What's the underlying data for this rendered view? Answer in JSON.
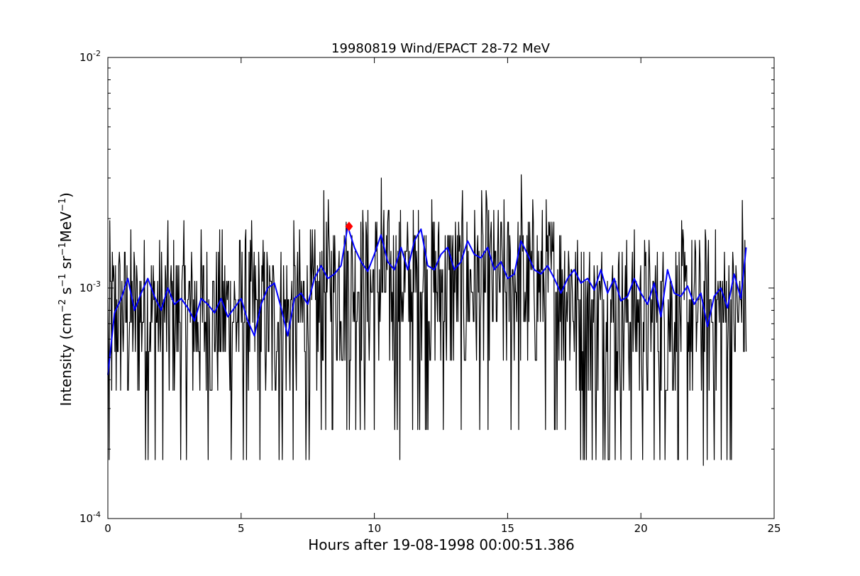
{
  "chart_data": {
    "type": "line",
    "title": "19980819 Wind/EPACT 28-72 MeV",
    "xlabel": "Hours after 19-08-1998 00:00:51.386",
    "ylabel": {
      "base": "Intensity (",
      "parts": [
        {
          "text": "cm",
          "sup": "−2"
        },
        {
          "text": " s",
          "sup": "−1"
        },
        {
          "text": " sr",
          "sup": "−1"
        },
        {
          "text": "MeV",
          "sup": "−1"
        }
      ],
      "close": ")"
    },
    "xlim": [
      0,
      25
    ],
    "ylim": [
      0.0001,
      0.01
    ],
    "yscale": "log",
    "x_ticks": [
      "0",
      "5",
      "10",
      "15",
      "20",
      "25"
    ],
    "y_ticks": [
      {
        "base": "10",
        "exp": "-4"
      },
      {
        "base": "10",
        "exp": "-3"
      },
      {
        "base": "10",
        "exp": "-2"
      }
    ],
    "grid": false,
    "series": [
      {
        "role": "raw",
        "color": "#000000",
        "x_range": [
          0.0,
          23.95
        ],
        "levels": [
          0.00018,
          0.00036,
          0.00053,
          0.00071,
          0.00089,
          0.00107,
          0.00125,
          0.00143,
          0.00161,
          0.00179,
          0.00196,
          0.00214,
          0.0023,
          0.0026,
          0.003
        ],
        "note_points": [
          {
            "x": 0.05,
            "y": 0.00018
          },
          {
            "x": 10.25,
            "y": 0.003
          },
          {
            "x": 10.95,
            "y": 0.00018
          },
          {
            "x": 15.5,
            "y": 0.0031
          },
          {
            "x": 22.35,
            "y": 0.00017
          },
          {
            "x": 23.8,
            "y": 0.0024
          }
        ]
      },
      {
        "role": "smoothed",
        "color": "#0000ff",
        "x": [
          0.0,
          0.25,
          0.5,
          0.75,
          1.0,
          1.25,
          1.5,
          1.75,
          2.0,
          2.25,
          2.5,
          2.75,
          3.0,
          3.25,
          3.5,
          3.75,
          4.0,
          4.25,
          4.5,
          4.75,
          5.0,
          5.25,
          5.5,
          5.75,
          6.0,
          6.25,
          6.5,
          6.75,
          7.0,
          7.25,
          7.5,
          7.75,
          8.0,
          8.25,
          8.5,
          8.75,
          9.0,
          9.25,
          9.5,
          9.75,
          10.0,
          10.25,
          10.5,
          10.75,
          11.0,
          11.25,
          11.5,
          11.75,
          12.0,
          12.25,
          12.5,
          12.75,
          13.0,
          13.25,
          13.5,
          13.75,
          14.0,
          14.25,
          14.5,
          14.75,
          15.0,
          15.25,
          15.5,
          15.75,
          16.0,
          16.25,
          16.5,
          16.75,
          17.0,
          17.25,
          17.5,
          17.75,
          18.0,
          18.25,
          18.5,
          18.75,
          19.0,
          19.25,
          19.5,
          19.75,
          20.0,
          20.25,
          20.5,
          20.75,
          21.0,
          21.25,
          21.5,
          21.75,
          22.0,
          22.25,
          22.5,
          22.75,
          23.0,
          23.25,
          23.5,
          23.75,
          23.95
        ],
        "y": [
          0.00042,
          0.00078,
          0.0009,
          0.0011,
          0.0008,
          0.00095,
          0.0011,
          0.00092,
          0.0008,
          0.001,
          0.00085,
          0.0009,
          0.00082,
          0.00072,
          0.0009,
          0.00085,
          0.00078,
          0.0009,
          0.00075,
          0.00082,
          0.0009,
          0.00072,
          0.00062,
          0.00085,
          0.001,
          0.00105,
          0.00082,
          0.00062,
          0.0009,
          0.00095,
          0.00085,
          0.0011,
          0.00125,
          0.0011,
          0.00115,
          0.00125,
          0.00185,
          0.0015,
          0.0013,
          0.00118,
          0.0014,
          0.0017,
          0.0013,
          0.0012,
          0.0015,
          0.0012,
          0.0016,
          0.0018,
          0.00125,
          0.0012,
          0.0014,
          0.0015,
          0.0012,
          0.0013,
          0.0016,
          0.0014,
          0.00135,
          0.0015,
          0.0012,
          0.0013,
          0.0011,
          0.00115,
          0.0016,
          0.0014,
          0.0012,
          0.00115,
          0.00125,
          0.0011,
          0.00095,
          0.0011,
          0.0012,
          0.00105,
          0.0011,
          0.00098,
          0.0012,
          0.00095,
          0.0011,
          0.00088,
          0.00092,
          0.0011,
          0.00095,
          0.00085,
          0.00105,
          0.00075,
          0.0012,
          0.00095,
          0.00092,
          0.00102,
          0.00085,
          0.00095,
          0.00068,
          0.00092,
          0.001,
          0.00082,
          0.00115,
          0.0009,
          0.0015
        ]
      },
      {
        "role": "marker",
        "color": "#ff0000",
        "shape": "diamond",
        "x": [
          9.05
        ],
        "y": [
          0.00185
        ]
      }
    ]
  }
}
